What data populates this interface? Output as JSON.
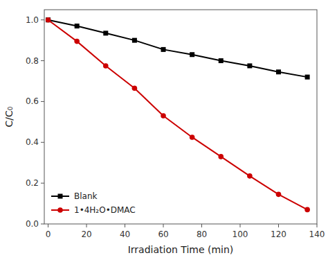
{
  "chart_data": {
    "type": "line",
    "xlabel": "Irradiation Time (min)",
    "ylabel": "C/C₀",
    "x": [
      0,
      15,
      30,
      45,
      60,
      75,
      90,
      105,
      120,
      135
    ],
    "series": [
      {
        "name": "Blank",
        "color": "#000000",
        "marker": "square",
        "values": [
          1.0,
          0.97,
          0.935,
          0.9,
          0.855,
          0.83,
          0.8,
          0.775,
          0.745,
          0.72
        ]
      },
      {
        "name": "1•4H₂O•DMAC",
        "color": "#cc0000",
        "marker": "circle",
        "values": [
          1.0,
          0.895,
          0.775,
          0.665,
          0.53,
          0.425,
          0.33,
          0.235,
          0.145,
          0.07
        ]
      }
    ],
    "xlim": [
      -2,
      140
    ],
    "ylim": [
      0.0,
      1.05
    ],
    "xticks": [
      0,
      20,
      40,
      60,
      80,
      100,
      120,
      140
    ],
    "yticks": [
      {
        "value": 0.0,
        "label": "0.0"
      },
      0.2,
      0.4,
      0.6,
      0.8,
      {
        "value": 1.0,
        "label": "1.0"
      }
    ],
    "grid": false,
    "legend": "lower left"
  }
}
